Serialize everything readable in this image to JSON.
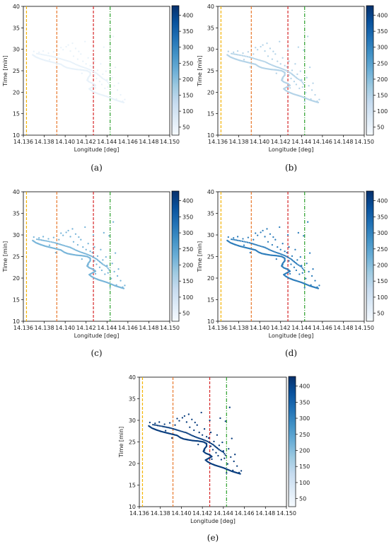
{
  "figure": {
    "panels": [
      "(a)",
      "(b)",
      "(c)",
      "(d)",
      "(e)"
    ]
  },
  "colormap": {
    "name": "Blues",
    "colorbar_ticks": [
      50,
      100,
      150,
      200,
      250,
      300,
      350,
      400
    ],
    "range": [
      25,
      430
    ],
    "stops": [
      "#f7fbff",
      "#deebf7",
      "#c6dbef",
      "#9ecae1",
      "#6baed6",
      "#4292c6",
      "#2171b5",
      "#08519c",
      "#08306b"
    ]
  },
  "vlines": [
    {
      "x": 14.1363,
      "color": "#f4b400",
      "style": "dashed"
    },
    {
      "x": 14.1392,
      "color": "#e8792d",
      "style": "dashed"
    },
    {
      "x": 14.1427,
      "color": "#d62728",
      "style": "dashed"
    },
    {
      "x": 14.1443,
      "color": "#2ca02c",
      "style": "dashdot"
    }
  ],
  "chart_data": [
    {
      "type": "scatter",
      "panel": "(a)",
      "xlabel": "Longitude [deg]",
      "ylabel": "Time [min]",
      "xlim": [
        14.136,
        14.15
      ],
      "ylim": [
        10,
        40
      ],
      "xticks": [
        "14.136",
        "14.138",
        "14.140",
        "14.142",
        "14.144",
        "14.146",
        "14.148",
        "14.150"
      ],
      "yticks": [
        "10",
        "15",
        "20",
        "25",
        "30",
        "35",
        "40"
      ],
      "color_value": 55
    },
    {
      "type": "scatter",
      "panel": "(b)",
      "xlabel": "Longitude [deg]",
      "ylabel": "Time [min]",
      "xlim": [
        14.136,
        14.15
      ],
      "ylim": [
        10,
        40
      ],
      "xticks": [
        "14.136",
        "14.138",
        "14.140",
        "14.142",
        "14.144",
        "14.146",
        "14.148",
        "14.150"
      ],
      "yticks": [
        "10",
        "15",
        "20",
        "25",
        "30",
        "35",
        "40"
      ],
      "color_value": 150
    },
    {
      "type": "scatter",
      "panel": "(c)",
      "xlabel": "Longitude [deg]",
      "ylabel": "Time [min]",
      "xlim": [
        14.136,
        14.15
      ],
      "ylim": [
        10,
        40
      ],
      "xticks": [
        "14.136",
        "14.138",
        "14.140",
        "14.142",
        "14.144",
        "14.146",
        "14.148",
        "14.150"
      ],
      "yticks": [
        "10",
        "15",
        "20",
        "25",
        "30",
        "35",
        "40"
      ],
      "color_value": 215
    },
    {
      "type": "scatter",
      "panel": "(d)",
      "xlabel": "Longitude [deg]",
      "ylabel": "Time [min]",
      "xlim": [
        14.136,
        14.15
      ],
      "ylim": [
        10,
        40
      ],
      "xticks": [
        "14.136",
        "14.138",
        "14.140",
        "14.142",
        "14.144",
        "14.146",
        "14.148",
        "14.150"
      ],
      "yticks": [
        "10",
        "15",
        "20",
        "25",
        "30",
        "35",
        "40"
      ],
      "color_value": 310
    },
    {
      "type": "scatter",
      "panel": "(e)",
      "xlabel": "Longitude [deg]",
      "ylabel": "Time [min]",
      "xlim": [
        14.136,
        14.15
      ],
      "ylim": [
        10,
        40
      ],
      "xticks": [
        "14.136",
        "14.138",
        "14.140",
        "14.142",
        "14.144",
        "14.146",
        "14.148",
        "14.150"
      ],
      "yticks": [
        "10",
        "15",
        "20",
        "25",
        "30",
        "35",
        "40"
      ],
      "color_value": 410
    }
  ],
  "scatter_points": {
    "trajectory": [
      [
        14.1369,
        28.7
      ],
      [
        14.1372,
        28.2
      ],
      [
        14.1376,
        27.8
      ],
      [
        14.1381,
        27.4
      ],
      [
        14.1386,
        27.1
      ],
      [
        14.1391,
        26.8
      ],
      [
        14.1396,
        26.5
      ],
      [
        14.1399,
        26.0
      ],
      [
        14.1402,
        25.7
      ],
      [
        14.1406,
        25.5
      ],
      [
        14.1411,
        25.3
      ],
      [
        14.1416,
        25.2
      ],
      [
        14.1421,
        25.0
      ],
      [
        14.1424,
        24.6
      ],
      [
        14.1424,
        24.0
      ],
      [
        14.1422,
        23.4
      ],
      [
        14.1421,
        22.8
      ],
      [
        14.1423,
        22.4
      ],
      [
        14.1427,
        22.0
      ],
      [
        14.1429,
        21.6
      ],
      [
        14.1426,
        21.2
      ],
      [
        14.1423,
        20.8
      ],
      [
        14.1425,
        20.4
      ],
      [
        14.1428,
        20.0
      ],
      [
        14.1432,
        19.6
      ],
      [
        14.1436,
        19.3
      ],
      [
        14.144,
        19.0
      ],
      [
        14.1444,
        18.6
      ],
      [
        14.1448,
        18.2
      ],
      [
        14.1452,
        17.9
      ],
      [
        14.1456,
        17.6
      ]
    ],
    "branch": [
      [
        14.1373,
        29.0
      ],
      [
        14.1382,
        28.6
      ],
      [
        14.139,
        28.2
      ],
      [
        14.1398,
        27.6
      ],
      [
        14.1405,
        27.1
      ],
      [
        14.141,
        26.5
      ],
      [
        14.1415,
        26.0
      ],
      [
        14.142,
        25.6
      ],
      [
        14.1425,
        25.1
      ],
      [
        14.143,
        24.4
      ],
      [
        14.1433,
        23.8
      ],
      [
        14.1436,
        23.2
      ],
      [
        14.144,
        22.6
      ],
      [
        14.1442,
        21.9
      ]
    ],
    "scatter": [
      [
        14.137,
        29.5
      ],
      [
        14.1375,
        29.3
      ],
      [
        14.1379,
        29.6
      ],
      [
        14.1384,
        29.1
      ],
      [
        14.1389,
        29.4
      ],
      [
        14.1394,
        28.9
      ],
      [
        14.1398,
        29.9
      ],
      [
        14.1401,
        30.6
      ],
      [
        14.1403,
        31.0
      ],
      [
        14.1405,
        29.6
      ],
      [
        14.1408,
        28.4
      ],
      [
        14.141,
        30.2
      ],
      [
        14.1412,
        27.7
      ],
      [
        14.1415,
        28.9
      ],
      [
        14.1417,
        27.2
      ],
      [
        14.1419,
        31.8
      ],
      [
        14.142,
        26.6
      ],
      [
        14.1422,
        28.0
      ],
      [
        14.1424,
        26.2
      ],
      [
        14.1426,
        25.9
      ],
      [
        14.1428,
        24.0
      ],
      [
        14.143,
        23.2
      ],
      [
        14.1431,
        25.1
      ],
      [
        14.1433,
        22.5
      ],
      [
        14.1435,
        21.8
      ],
      [
        14.1436,
        24.2
      ],
      [
        14.1437,
        30.5
      ],
      [
        14.1438,
        20.9
      ],
      [
        14.144,
        22.9
      ],
      [
        14.1441,
        21.2
      ],
      [
        14.1442,
        29.8
      ],
      [
        14.1444,
        19.9
      ],
      [
        14.1446,
        33.0
      ],
      [
        14.1447,
        21.5
      ],
      [
        14.1449,
        18.4
      ],
      [
        14.1451,
        22.1
      ],
      [
        14.1453,
        19.4
      ],
      [
        14.1455,
        17.9
      ],
      [
        14.1457,
        18.3
      ],
      [
        14.1396,
        30.4
      ],
      [
        14.1407,
        31.4
      ],
      [
        14.1416,
        24.4
      ],
      [
        14.1422,
        23.1
      ],
      [
        14.1428,
        27.2
      ],
      [
        14.1434,
        26.6
      ],
      [
        14.1439,
        24.9
      ],
      [
        14.1445,
        23.4
      ],
      [
        14.145,
        20.5
      ],
      [
        14.1385,
        27.6
      ],
      [
        14.1391,
        25.9
      ],
      [
        14.1413,
        29.5
      ],
      [
        14.1429,
        21.0
      ],
      [
        14.1443,
        17.8
      ],
      [
        14.1448,
        25.8
      ],
      [
        14.1427,
        30.0
      ]
    ]
  }
}
